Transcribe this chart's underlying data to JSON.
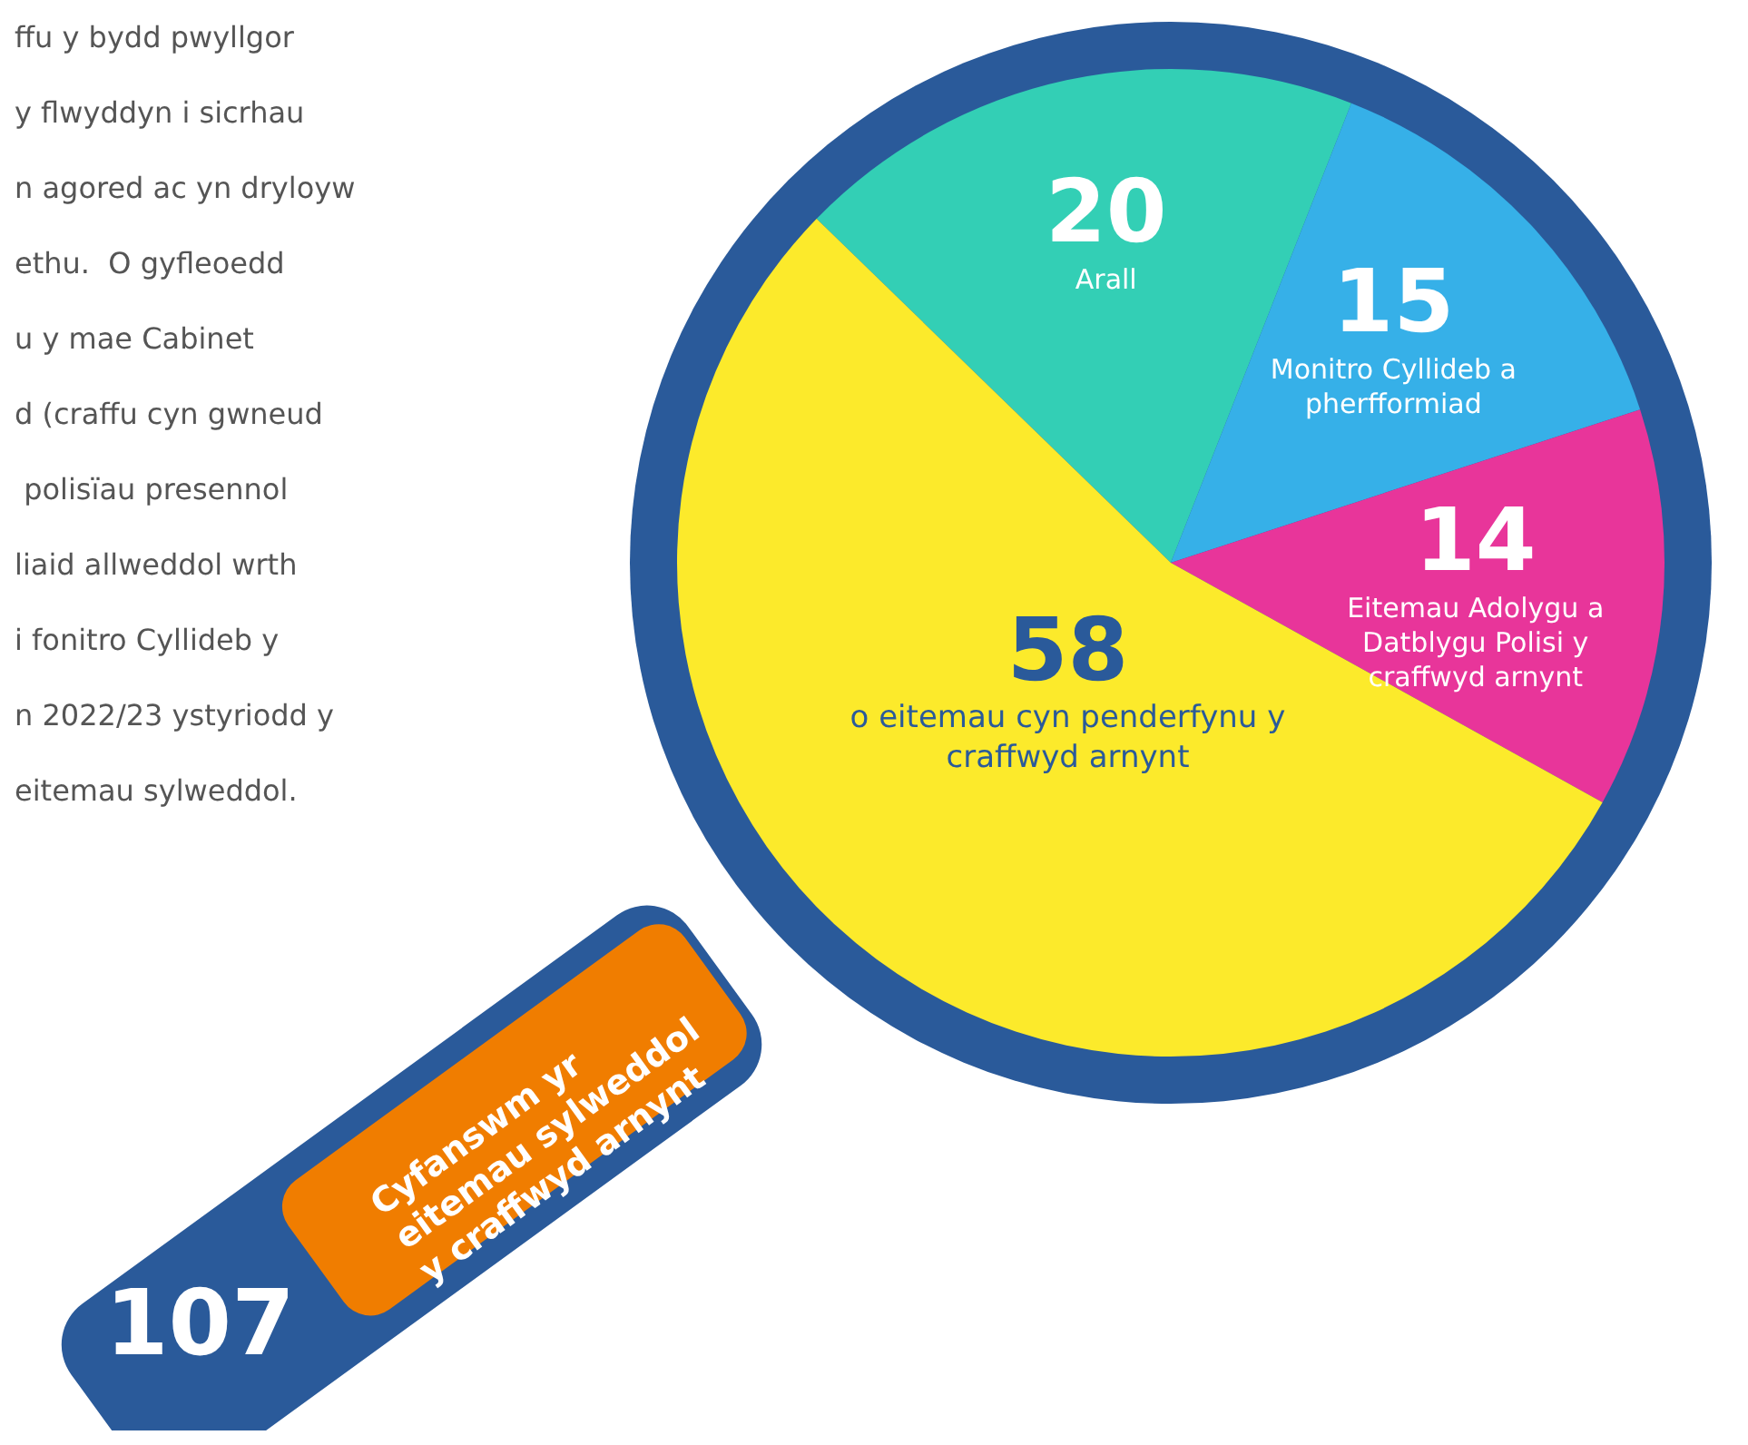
{
  "chart_data": {
    "type": "pie",
    "categories": [
      "Arall",
      "Monitro Cyllideb a pherfformiad",
      "Eitemau Adolygu a Datblygu Polisi y craffwyd arnynt",
      "o eitemau cyn penderfynu y craffwyd arnynt"
    ],
    "values": [
      20,
      15,
      14,
      58
    ],
    "colors": [
      "#33cfb5",
      "#36b0e8",
      "#e8359a",
      "#fcea2b"
    ],
    "data_labels": true,
    "annotations": [
      "ffu y bydd pwyllgor\ny flwyddyn i sicrhau\nn agored ac yn dryloyw\nethu.  O gyfleoedd\nu y mae Cabinet\nd (craffu cyn gwneud\n polisïau presennol\nliaid allweddol wrth\ni fonitro Cyllideb y\nn 2022/23 ystyriodd y\neitemau sylweddol.",
      "107",
      "Cyfanswm yr\neitemau sylweddol\ny craffwyd arnynt"
    ]
  }
}
